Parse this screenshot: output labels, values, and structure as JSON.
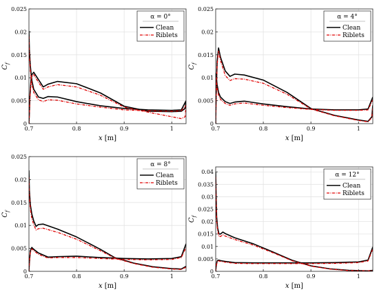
{
  "chart_data": [
    {
      "type": "line",
      "title": "",
      "xlabel": "x [m]",
      "ylabel": "C_f",
      "xlim": [
        0.7,
        1.03
      ],
      "ylim": [
        0,
        0.025
      ],
      "xticks": [
        0.7,
        0.8,
        0.9,
        1
      ],
      "xtick_labels": [
        "0.7",
        "0.8",
        "0.9",
        "1"
      ],
      "yticks": [
        0,
        0.005,
        0.01,
        0.015,
        0.02,
        0.025
      ],
      "ytick_labels": [
        "0",
        "0.005",
        "0.01",
        "0.015",
        "0.02",
        "0.025"
      ],
      "grid": true,
      "legend": {
        "title": "α = 0°",
        "position": "top-right"
      },
      "series": [
        {
          "name": "Clean",
          "color": "#000000",
          "dash": "solid",
          "x": [
            0.7,
            0.701,
            0.702,
            0.705,
            0.71,
            0.72,
            0.73,
            0.74,
            0.76,
            0.8,
            0.85,
            0.9,
            0.95,
            1.0,
            1.02,
            1.028,
            1.03
          ],
          "y": [
            0.0,
            0.0025,
            0.006,
            0.0105,
            0.0112,
            0.0096,
            0.008,
            0.0086,
            0.0092,
            0.0087,
            0.0067,
            0.0038,
            0.0027,
            0.0026,
            0.0027,
            0.0033,
            0.005
          ]
        },
        {
          "name": "",
          "color": "#000000",
          "dash": "solid",
          "x": [
            0.7,
            0.701,
            0.703,
            0.706,
            0.71,
            0.72,
            0.73,
            0.74,
            0.76,
            0.8,
            0.85,
            0.9,
            0.95,
            1.0,
            1.02,
            1.03
          ],
          "y": [
            0.0202,
            0.016,
            0.0125,
            0.0095,
            0.0075,
            0.0058,
            0.0055,
            0.0059,
            0.0058,
            0.0048,
            0.0039,
            0.0033,
            0.003,
            0.0029,
            0.003,
            0.005
          ]
        },
        {
          "name": "Riblets",
          "color": "#e00000",
          "dash": "dashdot",
          "x": [
            0.7,
            0.701,
            0.702,
            0.705,
            0.71,
            0.72,
            0.73,
            0.74,
            0.76,
            0.8,
            0.85,
            0.9,
            0.95,
            1.0,
            1.02,
            1.028,
            1.03
          ],
          "y": [
            0.0,
            0.002,
            0.0055,
            0.01,
            0.0107,
            0.009,
            0.0075,
            0.008,
            0.0085,
            0.008,
            0.0062,
            0.0036,
            0.0025,
            0.0015,
            0.0011,
            0.0015,
            0.004
          ]
        },
        {
          "name": "",
          "color": "#e00000",
          "dash": "dashdot",
          "x": [
            0.7,
            0.701,
            0.703,
            0.706,
            0.71,
            0.72,
            0.73,
            0.74,
            0.76,
            0.8,
            0.85,
            0.9,
            0.95,
            1.0,
            1.02,
            1.03
          ],
          "y": [
            0.019,
            0.015,
            0.0115,
            0.0087,
            0.0068,
            0.0052,
            0.0048,
            0.0052,
            0.0051,
            0.0043,
            0.0036,
            0.003,
            0.0028,
            0.0027,
            0.0028,
            0.004
          ]
        }
      ]
    },
    {
      "type": "line",
      "title": "",
      "xlabel": "x [m]",
      "ylabel": "C_f",
      "xlim": [
        0.7,
        1.03
      ],
      "ylim": [
        0,
        0.025
      ],
      "xticks": [
        0.7,
        0.8,
        0.9,
        1
      ],
      "xtick_labels": [
        "0.7",
        "0.8",
        "0.9",
        "1"
      ],
      "yticks": [
        0,
        0.005,
        0.01,
        0.015,
        0.02,
        0.025
      ],
      "ytick_labels": [
        "0",
        "0.005",
        "0.01",
        "0.015",
        "0.02",
        "0.025"
      ],
      "grid": true,
      "legend": {
        "title": "α = 4°",
        "position": "top-right"
      },
      "series": [
        {
          "name": "Clean",
          "color": "#000000",
          "dash": "solid",
          "x": [
            0.7,
            0.701,
            0.703,
            0.706,
            0.71,
            0.72,
            0.73,
            0.74,
            0.76,
            0.8,
            0.85,
            0.9,
            0.95,
            1.0,
            1.02,
            1.028,
            1.03
          ],
          "y": [
            0.0,
            0.006,
            0.0135,
            0.0165,
            0.0145,
            0.0115,
            0.0103,
            0.0108,
            0.0106,
            0.0095,
            0.0068,
            0.0033,
            0.0018,
            0.0008,
            0.0005,
            0.0015,
            0.004
          ]
        },
        {
          "name": "",
          "color": "#000000",
          "dash": "solid",
          "x": [
            0.7,
            0.701,
            0.703,
            0.706,
            0.71,
            0.72,
            0.73,
            0.74,
            0.76,
            0.8,
            0.85,
            0.9,
            0.95,
            1.0,
            1.02,
            1.03
          ],
          "y": [
            0.011,
            0.0105,
            0.0085,
            0.0068,
            0.0058,
            0.0048,
            0.0044,
            0.0047,
            0.0049,
            0.0043,
            0.0037,
            0.0032,
            0.003,
            0.003,
            0.0032,
            0.0058
          ]
        },
        {
          "name": "Riblets",
          "color": "#e00000",
          "dash": "dashdot",
          "x": [
            0.7,
            0.701,
            0.703,
            0.706,
            0.71,
            0.72,
            0.73,
            0.74,
            0.76,
            0.8,
            0.85,
            0.9,
            0.95,
            1.0,
            1.02,
            1.028,
            1.03
          ],
          "y": [
            0.0,
            0.0055,
            0.0128,
            0.0158,
            0.0138,
            0.0105,
            0.0094,
            0.0098,
            0.0097,
            0.0088,
            0.0064,
            0.0032,
            0.0017,
            0.0007,
            0.0004,
            0.0013,
            0.0035
          ]
        },
        {
          "name": "",
          "color": "#e00000",
          "dash": "dashdot",
          "x": [
            0.7,
            0.701,
            0.703,
            0.706,
            0.71,
            0.72,
            0.73,
            0.74,
            0.76,
            0.8,
            0.85,
            0.9,
            0.95,
            1.0,
            1.02,
            1.03
          ],
          "y": [
            0.0102,
            0.0098,
            0.0078,
            0.0062,
            0.0053,
            0.0044,
            0.004,
            0.0043,
            0.0045,
            0.004,
            0.0035,
            0.0031,
            0.0029,
            0.0029,
            0.003,
            0.0052
          ]
        }
      ]
    },
    {
      "type": "line",
      "title": "",
      "xlabel": "x [m]",
      "ylabel": "C_f",
      "xlim": [
        0.7,
        1.03
      ],
      "ylim": [
        0,
        0.025
      ],
      "xticks": [
        0.7,
        0.8,
        0.9,
        1
      ],
      "xtick_labels": [
        "0.7",
        "0.8",
        "0.9",
        "1"
      ],
      "yticks": [
        0,
        0.005,
        0.01,
        0.015,
        0.02,
        0.025
      ],
      "ytick_labels": [
        "0",
        "0.005",
        "0.01",
        "0.015",
        "0.02",
        "0.025"
      ],
      "grid": true,
      "legend": {
        "title": "α = 8°",
        "position": "top-right"
      },
      "series": [
        {
          "name": "Clean",
          "color": "#000000",
          "dash": "solid",
          "x": [
            0.7,
            0.701,
            0.703,
            0.706,
            0.71,
            0.715,
            0.72,
            0.73,
            0.76,
            0.8,
            0.85,
            0.88,
            0.92,
            0.96,
            1.0,
            1.02,
            1.03
          ],
          "y": [
            0.022,
            0.0175,
            0.0145,
            0.0125,
            0.011,
            0.0098,
            0.0102,
            0.0103,
            0.0092,
            0.0075,
            0.0048,
            0.003,
            0.0018,
            0.001,
            0.0006,
            0.0005,
            0.0011
          ]
        },
        {
          "name": "",
          "color": "#000000",
          "dash": "solid",
          "x": [
            0.7,
            0.701,
            0.703,
            0.706,
            0.71,
            0.72,
            0.74,
            0.76,
            0.8,
            0.85,
            0.9,
            0.95,
            1.0,
            1.02,
            1.03
          ],
          "y": [
            0.0,
            0.002,
            0.0045,
            0.0052,
            0.0048,
            0.004,
            0.0031,
            0.0032,
            0.0033,
            0.003,
            0.0028,
            0.0027,
            0.0028,
            0.0032,
            0.006
          ]
        },
        {
          "name": "Riblets",
          "color": "#e00000",
          "dash": "dashdot",
          "x": [
            0.7,
            0.701,
            0.703,
            0.706,
            0.71,
            0.715,
            0.72,
            0.73,
            0.76,
            0.8,
            0.85,
            0.88,
            0.92,
            0.96,
            1.0,
            1.02,
            1.03
          ],
          "y": [
            0.0205,
            0.0165,
            0.0135,
            0.0115,
            0.0102,
            0.009,
            0.0093,
            0.0094,
            0.0085,
            0.007,
            0.0045,
            0.0029,
            0.0017,
            0.0009,
            0.0005,
            0.0004,
            0.0009
          ]
        },
        {
          "name": "",
          "color": "#e00000",
          "dash": "dashdot",
          "x": [
            0.7,
            0.701,
            0.703,
            0.706,
            0.71,
            0.72,
            0.74,
            0.76,
            0.8,
            0.85,
            0.9,
            0.95,
            1.0,
            1.02,
            1.03
          ],
          "y": [
            0.0,
            0.0018,
            0.0042,
            0.0049,
            0.0045,
            0.0037,
            0.0029,
            0.003,
            0.003,
            0.0028,
            0.0026,
            0.0025,
            0.0026,
            0.003,
            0.0052
          ]
        }
      ]
    },
    {
      "type": "line",
      "title": "",
      "xlabel": "x [m]",
      "ylabel": "C_f",
      "xlim": [
        0.7,
        1.03
      ],
      "ylim": [
        0,
        0.042
      ],
      "xticks": [
        0.7,
        0.8,
        0.9,
        1
      ],
      "xtick_labels": [
        "0.7",
        "0.8",
        "0.9",
        "1"
      ],
      "yticks": [
        0,
        0.005,
        0.01,
        0.015,
        0.02,
        0.025,
        0.03,
        0.035,
        0.04
      ],
      "ytick_labels": [
        "0",
        "0.005",
        "0.01",
        "0.015",
        "0.02",
        "0.025",
        "0.03",
        "0.035",
        "0.04"
      ],
      "grid": true,
      "legend": {
        "title": "α = 12°",
        "position": "top-right"
      },
      "series": [
        {
          "name": "Clean",
          "color": "#000000",
          "dash": "solid",
          "x": [
            0.7,
            0.701,
            0.702,
            0.704,
            0.707,
            0.71,
            0.715,
            0.72,
            0.74,
            0.78,
            0.82,
            0.86,
            0.9,
            0.94,
            0.98,
            1.02,
            1.03
          ],
          "y": [
            0.04,
            0.03,
            0.022,
            0.0175,
            0.015,
            0.015,
            0.0158,
            0.0152,
            0.0135,
            0.011,
            0.0078,
            0.0045,
            0.0022,
            0.001,
            0.0004,
            0.0002,
            0.0004
          ]
        },
        {
          "name": "",
          "color": "#000000",
          "dash": "solid",
          "x": [
            0.7,
            0.701,
            0.703,
            0.706,
            0.71,
            0.72,
            0.74,
            0.78,
            0.82,
            0.86,
            0.9,
            0.95,
            1.0,
            1.02,
            1.03
          ],
          "y": [
            0.0,
            0.002,
            0.0042,
            0.0045,
            0.0043,
            0.004,
            0.0035,
            0.0034,
            0.0034,
            0.0034,
            0.0034,
            0.0035,
            0.0038,
            0.0045,
            0.0098
          ]
        },
        {
          "name": "Riblets",
          "color": "#e00000",
          "dash": "dashdot",
          "x": [
            0.7,
            0.701,
            0.702,
            0.704,
            0.707,
            0.71,
            0.715,
            0.72,
            0.74,
            0.78,
            0.82,
            0.86,
            0.9,
            0.94,
            0.98,
            1.02,
            1.03
          ],
          "y": [
            0.038,
            0.028,
            0.0205,
            0.0165,
            0.014,
            0.014,
            0.0147,
            0.0142,
            0.0128,
            0.0105,
            0.0075,
            0.0043,
            0.0021,
            0.0009,
            0.0003,
            0.0002,
            0.0003
          ]
        },
        {
          "name": "",
          "color": "#e00000",
          "dash": "dashdot",
          "x": [
            0.7,
            0.701,
            0.703,
            0.706,
            0.71,
            0.72,
            0.74,
            0.78,
            0.82,
            0.86,
            0.9,
            0.95,
            1.0,
            1.02,
            1.03
          ],
          "y": [
            0.0,
            0.0018,
            0.0039,
            0.0042,
            0.004,
            0.0037,
            0.0032,
            0.0031,
            0.0031,
            0.0031,
            0.0031,
            0.0032,
            0.0035,
            0.0042,
            0.009
          ]
        }
      ]
    }
  ]
}
